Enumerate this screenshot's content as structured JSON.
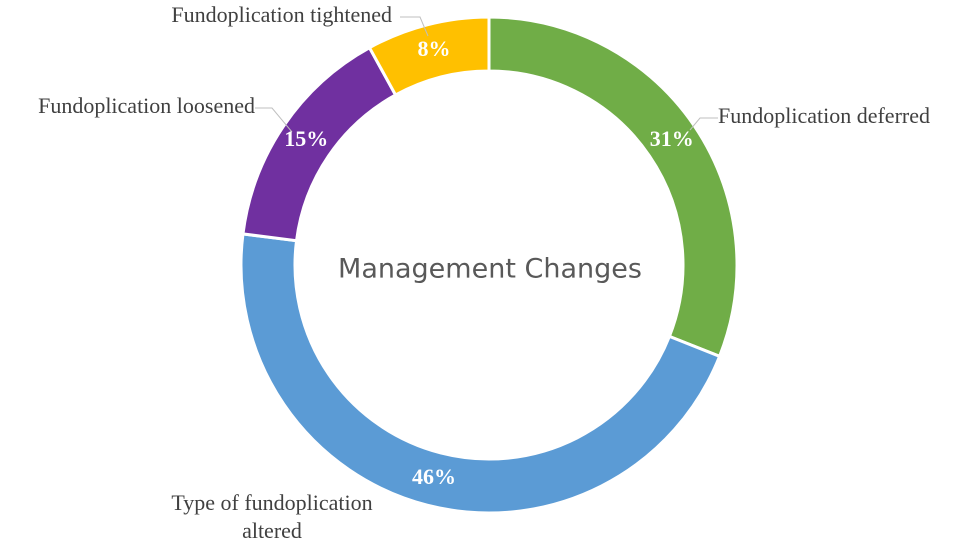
{
  "chart_data": {
    "type": "pie",
    "center_label": "Management Changes",
    "slices": [
      {
        "label": "Fundoplication deferred",
        "pct_label": "31%",
        "value": 31,
        "color": "#70ad47"
      },
      {
        "label": "Type of fundoplication altered",
        "label_lines": [
          "Type of fundoplication",
          "altered"
        ],
        "pct_label": "46%",
        "value": 46,
        "color": "#5b9bd5"
      },
      {
        "label": "Fundoplication loosened",
        "pct_label": "15%",
        "value": 15,
        "color": "#7030a0"
      },
      {
        "label": "Fundoplication tightened",
        "pct_label": "8%",
        "value": 8,
        "color": "#ffc000"
      }
    ],
    "legend": "none"
  }
}
